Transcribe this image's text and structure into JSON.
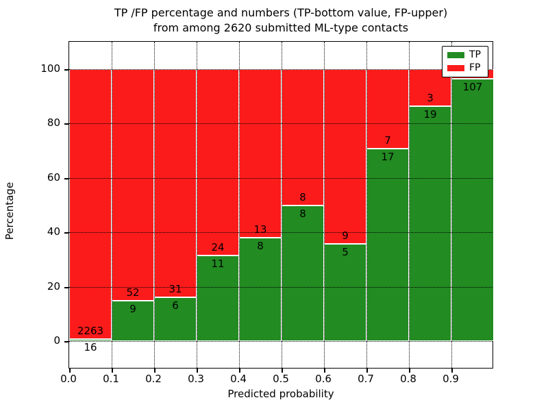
{
  "title": {
    "line1": "TP /FP percentage and numbers (TP-bottom value, FP-upper)",
    "line2": "from among 2620 submitted ML-type contacts"
  },
  "chart_data": {
    "type": "bar",
    "stacked": true,
    "normalized_to_percent": true,
    "title": "TP /FP percentage and numbers (TP-bottom value, FP-upper)\nfrom among 2620 submitted ML-type contacts",
    "xlabel": "Predicted probability",
    "ylabel": "Percentage",
    "total_contacts": 2620,
    "xlim": [
      0.0,
      1.0
    ],
    "ylim": [
      -10.3,
      110.1
    ],
    "yticks": [
      0,
      20,
      40,
      60,
      80,
      100
    ],
    "xtick_labels": [
      "0.0",
      "0.1",
      "0.2",
      "0.3",
      "0.4",
      "0.5",
      "0.6",
      "0.7",
      "0.8",
      "0.9"
    ],
    "grid": "dotted",
    "legend_position": "upper right",
    "bin_edges": [
      0.0,
      0.1,
      0.2,
      0.3,
      0.4,
      0.5,
      0.6,
      0.7,
      0.8,
      0.9,
      1.0
    ],
    "series": [
      {
        "name": "TP",
        "color": "#228B22",
        "counts": [
          16,
          9,
          6,
          11,
          8,
          8,
          5,
          17,
          19,
          107
        ]
      },
      {
        "name": "FP",
        "color": "#FB1B1B",
        "counts": [
          2263,
          52,
          31,
          24,
          13,
          8,
          9,
          7,
          3,
          4
        ]
      }
    ],
    "fp_label_visible": [
      true,
      true,
      true,
      true,
      true,
      true,
      true,
      true,
      true,
      false
    ],
    "tp_percent_of_bin": [
      0.7,
      14.8,
      16.2,
      31.4,
      38.1,
      50.0,
      35.7,
      70.8,
      86.4,
      96.4
    ]
  },
  "colors": {
    "tp": "#228B22",
    "fp": "#FB1B1B",
    "grid": "#000000",
    "bar_edge": "#ffffff",
    "text": "#000000",
    "background": "#ffffff"
  }
}
